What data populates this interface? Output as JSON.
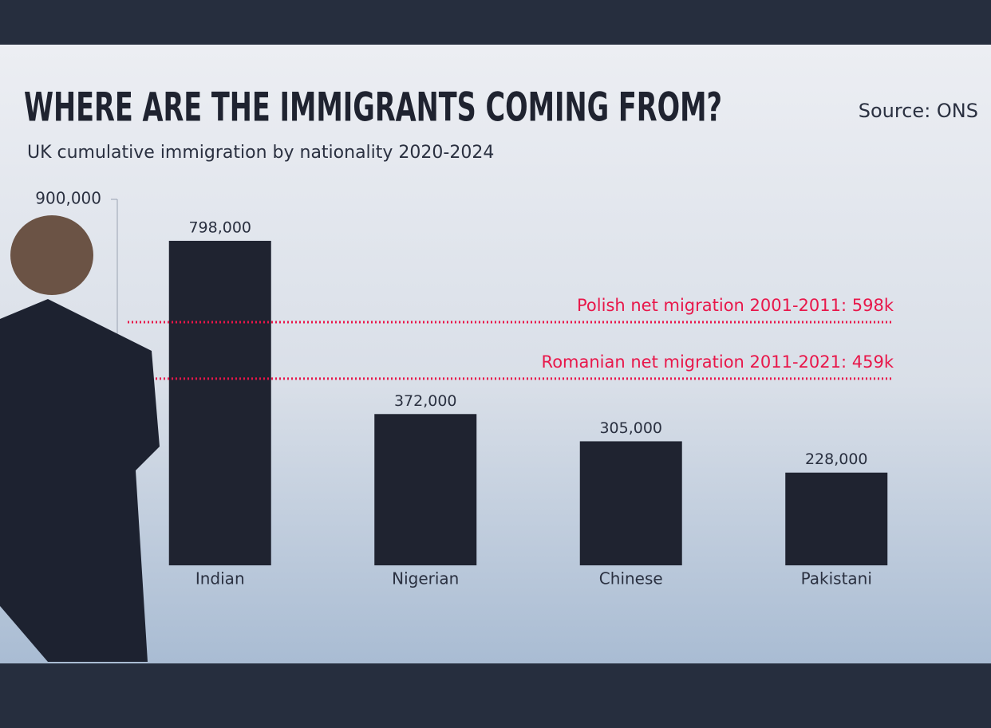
{
  "chart_data": {
    "type": "bar",
    "title": "WHERE ARE THE IMMIGRANTS COMING FROM?",
    "subtitle": "UK cumulative immigration by nationality 2020-2024",
    "source": "Source: ONS",
    "categories": [
      "Indian",
      "Nigerian",
      "Chinese",
      "Pakistani"
    ],
    "values": [
      798000,
      372000,
      305000,
      228000
    ],
    "value_labels": [
      "798,000",
      "372,000",
      "305,000",
      "228,000"
    ],
    "color": "#1f2330",
    "ylim": [
      0,
      900000
    ],
    "yticks": [
      {
        "value": 900000,
        "label": "900,000"
      }
    ],
    "reference_lines": [
      {
        "value": 598000,
        "label": "Polish net migration 2001-2011: 598k",
        "color": "#e8174a"
      },
      {
        "value": 459000,
        "label": "Romanian net migration 2011-2021: 459k",
        "color": "#e8174a"
      }
    ]
  }
}
